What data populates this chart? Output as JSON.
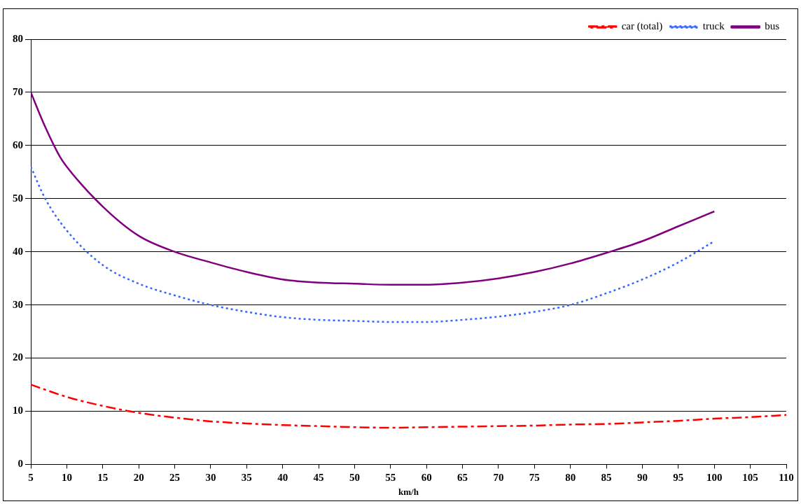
{
  "chart_data": {
    "type": "line",
    "xlabel": "km/h",
    "xlim": [
      5,
      110
    ],
    "xticks": [
      5,
      10,
      15,
      20,
      25,
      30,
      35,
      40,
      45,
      50,
      55,
      60,
      65,
      70,
      75,
      80,
      85,
      90,
      95,
      100,
      105,
      110
    ],
    "ylim": [
      0,
      80
    ],
    "yticks": [
      0,
      10,
      20,
      30,
      40,
      50,
      60,
      70,
      80
    ],
    "grid": "y",
    "legend": "top right",
    "marker": "none",
    "series": [
      {
        "name": "car (total)",
        "color": "#ff0000",
        "line_style": "dashed",
        "x": [
          5,
          10,
          15,
          20,
          25,
          30,
          35,
          40,
          45,
          50,
          55,
          60,
          65,
          70,
          75,
          80,
          85,
          90,
          95,
          100,
          105,
          110
        ],
        "values": [
          15,
          12.7,
          11,
          9.7,
          8.8,
          8.1,
          7.7,
          7.4,
          7.2,
          7.0,
          6.9,
          7.0,
          7.1,
          7.2,
          7.3,
          7.5,
          7.6,
          7.9,
          8.2,
          8.6,
          8.9,
          9.3
        ]
      },
      {
        "name": "truck",
        "color": "#3366ff",
        "line_style": "dotted",
        "x": [
          5,
          7,
          10,
          15,
          20,
          25,
          30,
          35,
          40,
          45,
          50,
          55,
          60,
          65,
          70,
          75,
          80,
          85,
          90,
          95,
          100
        ],
        "values": [
          56,
          50,
          44,
          37.5,
          34,
          31.8,
          30,
          28.7,
          27.7,
          27.2,
          27,
          26.8,
          26.8,
          27.2,
          27.8,
          28.7,
          30,
          32.2,
          34.8,
          38,
          42
        ]
      },
      {
        "name": "bus",
        "color": "#800080",
        "line_style": "solid",
        "x": [
          5,
          7,
          9,
          10,
          15,
          20,
          25,
          30,
          35,
          40,
          45,
          50,
          55,
          60,
          65,
          70,
          75,
          80,
          85,
          90,
          95,
          100
        ],
        "values": [
          70,
          63.5,
          58,
          56,
          48.5,
          43,
          40,
          38,
          36.2,
          34.8,
          34.2,
          34,
          33.8,
          33.8,
          34.2,
          35,
          36.2,
          37.8,
          39.8,
          42,
          44.8,
          47.6
        ]
      }
    ]
  }
}
